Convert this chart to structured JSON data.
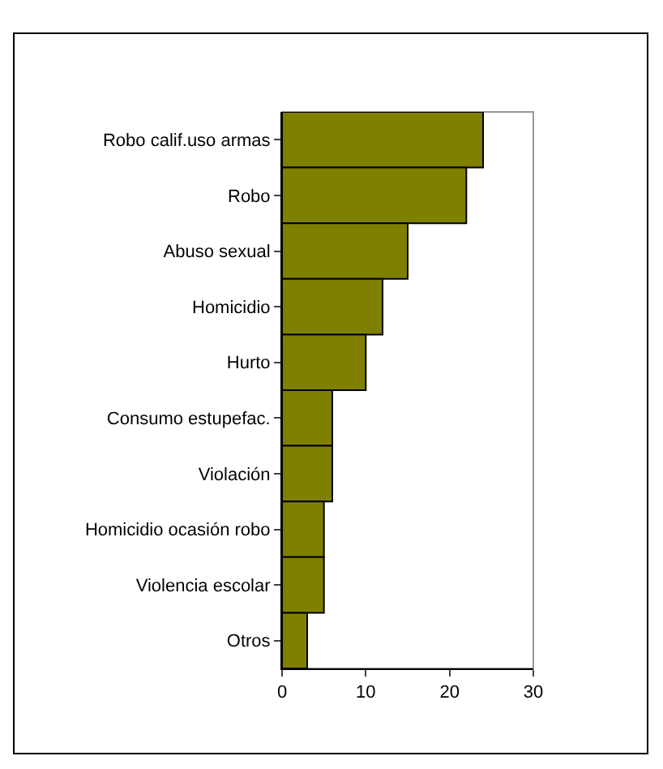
{
  "chart_data": {
    "type": "bar",
    "orientation": "horizontal",
    "categories": [
      "Robo calif.uso armas",
      "Robo",
      "Abuso sexual",
      "Homicidio",
      "Hurto",
      "Consumo estupefac.",
      "Violación",
      "Homicidio ocasión robo",
      "Violencia escolar",
      "Otros"
    ],
    "values": [
      24,
      22,
      15,
      12,
      10,
      6,
      6,
      5,
      5,
      3
    ],
    "color": "#808000",
    "xlim": [
      0,
      30
    ],
    "xticks": [
      0,
      10,
      20,
      30
    ],
    "grid": false
  }
}
